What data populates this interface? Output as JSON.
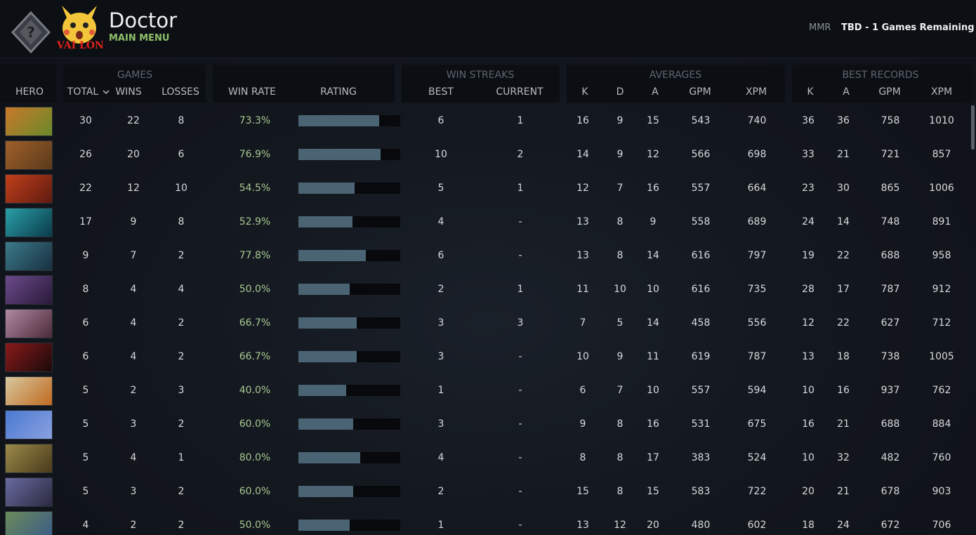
{
  "header": {
    "title": "Doctor",
    "subtitle": "MAIN MENU",
    "badge_text": "VAI LON",
    "mmr_label": "MMR",
    "mmr_value": "TBD - 1 Games Remaining"
  },
  "table": {
    "groups": [
      "GAMES",
      "WIN STREAKS",
      "AVERAGES",
      "BEST RECORDS"
    ],
    "columns": [
      "HERO",
      "TOTAL",
      "WINS",
      "LOSSES",
      "WIN RATE",
      "RATING",
      "BEST",
      "CURRENT",
      "K",
      "D",
      "A",
      "GPM",
      "XPM",
      "K",
      "A",
      "GPM",
      "XPM"
    ],
    "rows": [
      [
        30,
        22,
        8,
        "73.3%",
        6,
        1,
        16,
        9,
        15,
        543,
        740,
        36,
        36,
        758,
        1010
      ],
      [
        26,
        20,
        6,
        "76.9%",
        10,
        2,
        14,
        9,
        12,
        566,
        698,
        33,
        21,
        721,
        857
      ],
      [
        22,
        12,
        10,
        "54.5%",
        5,
        1,
        12,
        7,
        16,
        557,
        664,
        23,
        30,
        865,
        1006
      ],
      [
        17,
        9,
        8,
        "52.9%",
        4,
        "-",
        13,
        8,
        9,
        558,
        689,
        24,
        14,
        748,
        891
      ],
      [
        9,
        7,
        2,
        "77.8%",
        6,
        "-",
        13,
        8,
        14,
        616,
        797,
        19,
        22,
        688,
        958
      ],
      [
        8,
        4,
        4,
        "50.0%",
        2,
        1,
        11,
        10,
        10,
        616,
        735,
        28,
        17,
        787,
        912
      ],
      [
        6,
        4,
        2,
        "66.7%",
        3,
        3,
        7,
        5,
        14,
        458,
        556,
        12,
        22,
        627,
        712
      ],
      [
        6,
        4,
        2,
        "66.7%",
        3,
        "-",
        10,
        9,
        11,
        619,
        787,
        13,
        18,
        738,
        1005
      ],
      [
        5,
        2,
        3,
        "40.0%",
        1,
        "-",
        6,
        7,
        10,
        557,
        594,
        10,
        16,
        937,
        762
      ],
      [
        5,
        3,
        2,
        "60.0%",
        3,
        "-",
        9,
        8,
        16,
        531,
        675,
        16,
        21,
        688,
        884
      ],
      [
        5,
        4,
        1,
        "80.0%",
        4,
        "-",
        8,
        8,
        17,
        383,
        524,
        10,
        32,
        482,
        760
      ],
      [
        5,
        3,
        2,
        "60.0%",
        2,
        "-",
        15,
        8,
        15,
        583,
        722,
        20,
        21,
        678,
        903
      ],
      [
        4,
        2,
        2,
        "50.0%",
        1,
        "-",
        13,
        12,
        20,
        480,
        602,
        18,
        24,
        672,
        706
      ]
    ],
    "ratings": [
      79,
      81,
      55,
      53,
      66,
      50,
      57,
      57,
      47,
      54,
      61,
      54,
      50
    ]
  }
}
